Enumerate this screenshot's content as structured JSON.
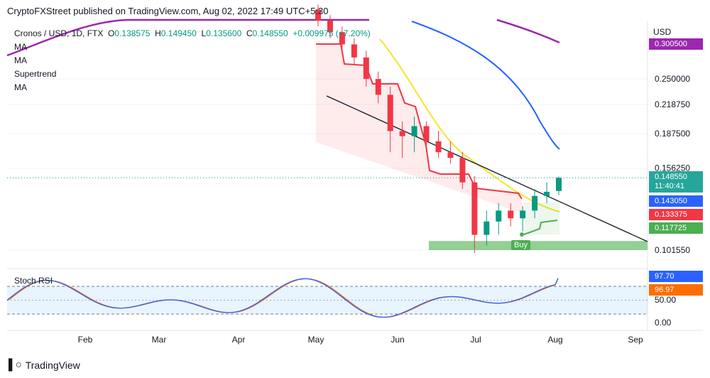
{
  "header": {
    "text": "CryptoFXStreet published on TradingView.com, Aug 02, 2022 17:49 UTC+5:30"
  },
  "legend": {
    "symbol": "Cronos / USD, 1D, FTX",
    "o_label": "O",
    "o": "0.138575",
    "h_label": "H",
    "h": "0.149450",
    "l_label": "L",
    "l": "0.135600",
    "c_label": "C",
    "c": "0.148550",
    "change": "+0.009975 (+7.20%)",
    "indicators": [
      "MA",
      "MA",
      "Supertrend",
      "MA"
    ]
  },
  "currency": "USD",
  "price_tags": {
    "ma_purple": "0.300500",
    "close": "0.148550",
    "countdown": "11:40:41",
    "ma_blue": "0.143050",
    "supertrend": "0.133375",
    "ma_green": "0.117725"
  },
  "stoch": {
    "label": "Stoch RSI",
    "k_value": "97.70",
    "d_value": "96.97",
    "axis_ticks": [
      "50.00",
      "0.00"
    ]
  },
  "buy_label": "Buy",
  "footer": {
    "brand": "TradingView"
  },
  "colors": {
    "up": "#089981",
    "down": "#f23645",
    "ma_purple": "#9c27b0",
    "ma_blue": "#2962ff",
    "ma_yellow": "#f5e52b",
    "supertrend_red": "#f23645",
    "supertrend_green": "#4caf50",
    "stoch_k": "#2962ff",
    "stoch_d": "#ff6d00"
  },
  "chart_data": {
    "type": "candlestick",
    "x_tick_labels": [
      "Feb",
      "Mar",
      "Apr",
      "May",
      "Jun",
      "Jul",
      "Aug",
      "Sep"
    ],
    "y_tick_labels": [
      "0.300500",
      "0.250000",
      "0.218750",
      "0.187500",
      "0.156250",
      "0.148550",
      "0.101550"
    ],
    "log_scale": true,
    "trendline": {
      "from": [
        "May",
        0.225
      ],
      "to": [
        "Sep",
        0.108
      ]
    },
    "support_zone": [
      0.1015,
      0.1065
    ],
    "candles": [
      {
        "month": "May",
        "o": 0.36,
        "h": 0.37,
        "l": 0.33,
        "c": 0.34
      },
      {
        "month": "May",
        "o": 0.34,
        "h": 0.35,
        "l": 0.31,
        "c": 0.32
      },
      {
        "month": "May",
        "o": 0.32,
        "h": 0.33,
        "l": 0.29,
        "c": 0.3
      },
      {
        "month": "May",
        "o": 0.3,
        "h": 0.31,
        "l": 0.27,
        "c": 0.28
      },
      {
        "month": "May",
        "o": 0.28,
        "h": 0.29,
        "l": 0.24,
        "c": 0.25
      },
      {
        "month": "May",
        "o": 0.25,
        "h": 0.26,
        "l": 0.22,
        "c": 0.23
      },
      {
        "month": "May",
        "o": 0.23,
        "h": 0.24,
        "l": 0.17,
        "c": 0.19
      },
      {
        "month": "May",
        "o": 0.19,
        "h": 0.2,
        "l": 0.165,
        "c": 0.185
      },
      {
        "month": "May",
        "o": 0.185,
        "h": 0.205,
        "l": 0.17,
        "c": 0.195
      },
      {
        "month": "Jun",
        "o": 0.195,
        "h": 0.2,
        "l": 0.17,
        "c": 0.18
      },
      {
        "month": "Jun",
        "o": 0.18,
        "h": 0.19,
        "l": 0.165,
        "c": 0.17
      },
      {
        "month": "Jun",
        "o": 0.17,
        "h": 0.18,
        "l": 0.16,
        "c": 0.165
      },
      {
        "month": "Jun",
        "o": 0.165,
        "h": 0.17,
        "l": 0.14,
        "c": 0.145
      },
      {
        "month": "Jun",
        "o": 0.145,
        "h": 0.15,
        "l": 0.1,
        "c": 0.11
      },
      {
        "month": "Jun",
        "o": 0.11,
        "h": 0.125,
        "l": 0.104,
        "c": 0.118
      },
      {
        "month": "Jul",
        "o": 0.118,
        "h": 0.13,
        "l": 0.11,
        "c": 0.125
      },
      {
        "month": "Jul",
        "o": 0.125,
        "h": 0.13,
        "l": 0.115,
        "c": 0.12
      },
      {
        "month": "Jul",
        "o": 0.12,
        "h": 0.128,
        "l": 0.112,
        "c": 0.125
      },
      {
        "month": "Jul",
        "o": 0.125,
        "h": 0.14,
        "l": 0.12,
        "c": 0.135
      },
      {
        "month": "Aug",
        "o": 0.135,
        "h": 0.145,
        "l": 0.13,
        "c": 0.138
      },
      {
        "month": "Aug",
        "o": 0.138575,
        "h": 0.14945,
        "l": 0.1356,
        "c": 0.14855
      }
    ],
    "stoch_rsi": {
      "k_last": 97.7,
      "d_last": 96.97,
      "bands": [
        80,
        20
      ]
    }
  }
}
